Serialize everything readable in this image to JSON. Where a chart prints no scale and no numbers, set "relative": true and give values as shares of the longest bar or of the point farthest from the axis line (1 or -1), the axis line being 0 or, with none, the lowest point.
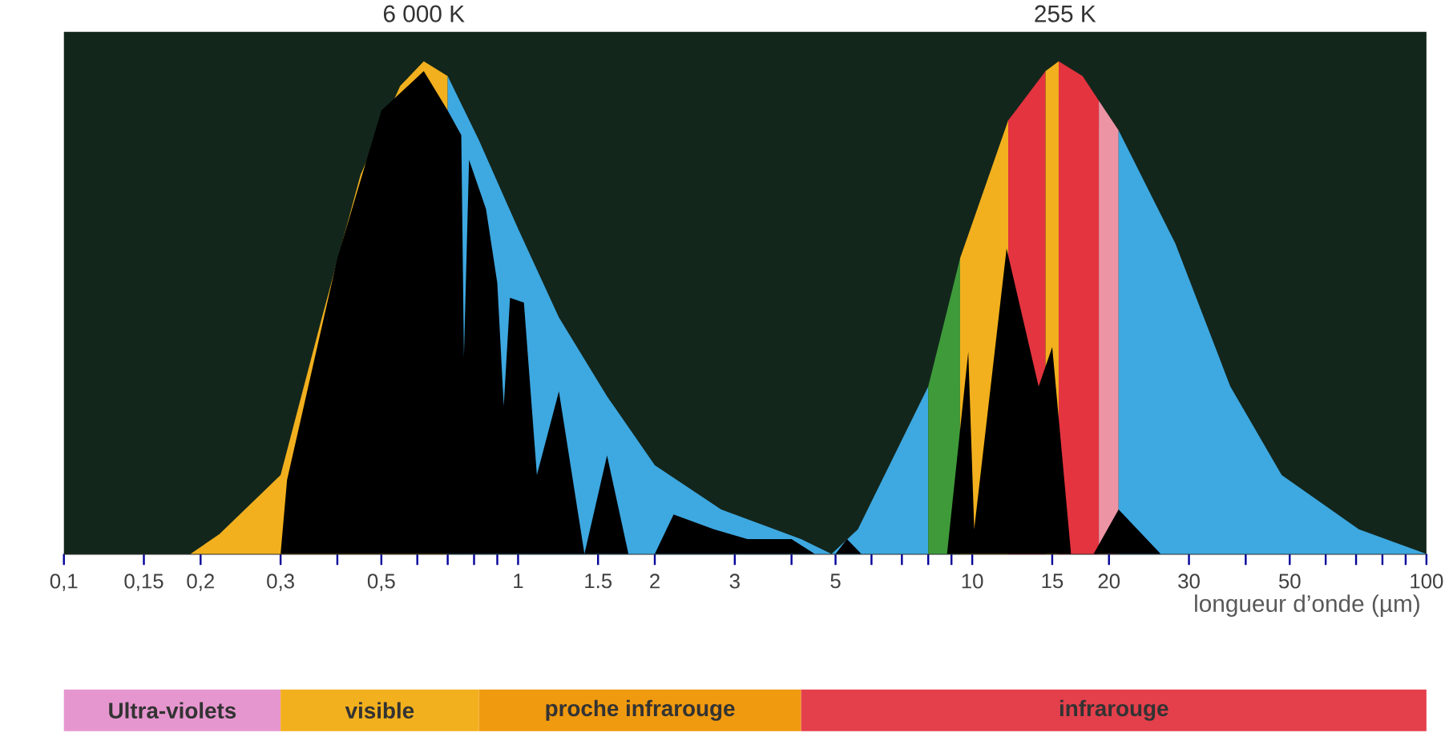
{
  "chart_data": [
    {
      "type": "area",
      "relative": true,
      "log": "x",
      "xlabel": "longueur d’onde (µm)",
      "xlim": [
        0.1,
        100
      ],
      "xticks": [
        {
          "value": 0.1,
          "label": "0,1"
        },
        {
          "value": 0.15,
          "label": "0,15"
        },
        {
          "value": 0.2,
          "label": "0,2"
        },
        {
          "value": 0.3,
          "label": "0,3"
        },
        {
          "value": 0.4,
          "label": null
        },
        {
          "value": 0.5,
          "label": "0,5"
        },
        {
          "value": 0.6,
          "label": null
        },
        {
          "value": 0.7,
          "label": null
        },
        {
          "value": 0.8,
          "label": null
        },
        {
          "value": 0.9,
          "label": null
        },
        1,
        1.5,
        2,
        3,
        {
          "value": 4,
          "label": null
        },
        5,
        {
          "value": 6,
          "label": null
        },
        {
          "value": 7,
          "label": null
        },
        {
          "value": 8,
          "label": null
        },
        {
          "value": 9,
          "label": null
        },
        10,
        15,
        20,
        30,
        {
          "value": 40,
          "label": null
        },
        50,
        {
          "value": 60,
          "label": null
        },
        {
          "value": 70,
          "label": null
        },
        {
          "value": 80,
          "label": null
        },
        {
          "value": 90,
          "label": null
        },
        100
      ],
      "series": [
        {
          "color": "#f2b01e",
          "x": [
            0.19,
            0.22,
            0.3,
            0.37,
            0.45,
            0.55,
            0.62,
            0.7
          ],
          "values": [
            0,
            0.04,
            0.16,
            0.48,
            0.77,
            0.95,
            1.0,
            0.97
          ]
        },
        {
          "color": "#3ea8e0",
          "x": [
            0.7,
            0.82,
            1.0,
            1.23,
            1.57,
            2.0,
            2.8,
            4.2,
            4.9
          ],
          "values": [
            0.97,
            0.84,
            0.66,
            0.48,
            0.32,
            0.18,
            0.09,
            0.03,
            0
          ]
        },
        {
          "color": "#3ea8e0",
          "x": [
            4.9,
            5.6,
            8.0
          ],
          "values": [
            0,
            0.05,
            0.34
          ]
        },
        {
          "color": "#3f9a3a",
          "x": [
            8.0,
            9.4
          ],
          "values": [
            0.34,
            0.6
          ]
        },
        {
          "color": "#f2b01e",
          "x": [
            9.4,
            12
          ],
          "values": [
            0.6,
            0.88
          ]
        },
        {
          "color": "#e4343f",
          "x": [
            12,
            14.5
          ],
          "values": [
            0.88,
            0.98
          ]
        },
        {
          "color": "#f2b01e",
          "x": [
            14.5,
            15.5
          ],
          "values": [
            0.98,
            1.0
          ]
        },
        {
          "color": "#e4343f",
          "x": [
            15.5,
            17.5,
            19
          ],
          "values": [
            1.0,
            0.97,
            0.92
          ]
        },
        {
          "color": "#ec94a4",
          "x": [
            19,
            21
          ],
          "values": [
            0.92,
            0.86
          ]
        },
        {
          "color": "#3ea8e0",
          "x": [
            21,
            28,
            37,
            48,
            71,
            100
          ],
          "values": [
            0.86,
            0.63,
            0.34,
            0.16,
            0.05,
            0
          ]
        },
        {
          "color": "#000000",
          "x": [
            0.3,
            0.31,
            0.4,
            0.5,
            0.62,
            0.7,
            0.75,
            0.76,
            0.78,
            0.85,
            0.9,
            0.93,
            0.96,
            1.03,
            1.1,
            1.23,
            1.4,
            1.57,
            1.75,
            2.0,
            2.2,
            2.7,
            3.2,
            4.0,
            4.5
          ],
          "values": [
            0,
            0.15,
            0.6,
            0.9,
            0.98,
            0.9,
            0.85,
            0.4,
            0.8,
            0.7,
            0.55,
            0.3,
            0.52,
            0.51,
            0.16,
            0.33,
            0,
            0.2,
            0,
            0,
            0.08,
            0.05,
            0.03,
            0.03,
            0
          ]
        },
        {
          "color": "#000000",
          "x": [
            5.0,
            5.3,
            5.7,
            8.8,
            9.8,
            10.1,
            11.9,
            14,
            15,
            16.5,
            18.5,
            21,
            26
          ],
          "values": [
            0,
            0.03,
            0,
            0,
            0.41,
            0.05,
            0.62,
            0.34,
            0.42,
            0,
            0,
            0.09,
            0
          ]
        }
      ],
      "annotations": [
        {
          "text": "6 000 K",
          "x": 0.62,
          "y": 1.0
        },
        {
          "text": "255 K",
          "x": 16,
          "y": 1.0
        }
      ]
    },
    {
      "type": "bar",
      "orientation": "horizontal",
      "log": "x",
      "xlim": [
        0.1,
        100
      ],
      "tick_labels": false,
      "categories": [
        null
      ],
      "series": [
        {
          "name": "Ultra-violets",
          "color": "#e696cf",
          "base": [
            0.1
          ],
          "values": [
            0.2
          ]
        },
        {
          "name": "visible",
          "color": "#f2b01e",
          "base": [
            0.3
          ],
          "values": [
            0.52
          ]
        },
        {
          "name": "proche infrarouge",
          "color": "#f09a10",
          "base": [
            0.82
          ],
          "values": [
            3.38
          ]
        },
        {
          "name": "infrarouge",
          "color": "#e4404c",
          "base": [
            4.2
          ],
          "values": [
            95.8
          ]
        }
      ]
    }
  ]
}
